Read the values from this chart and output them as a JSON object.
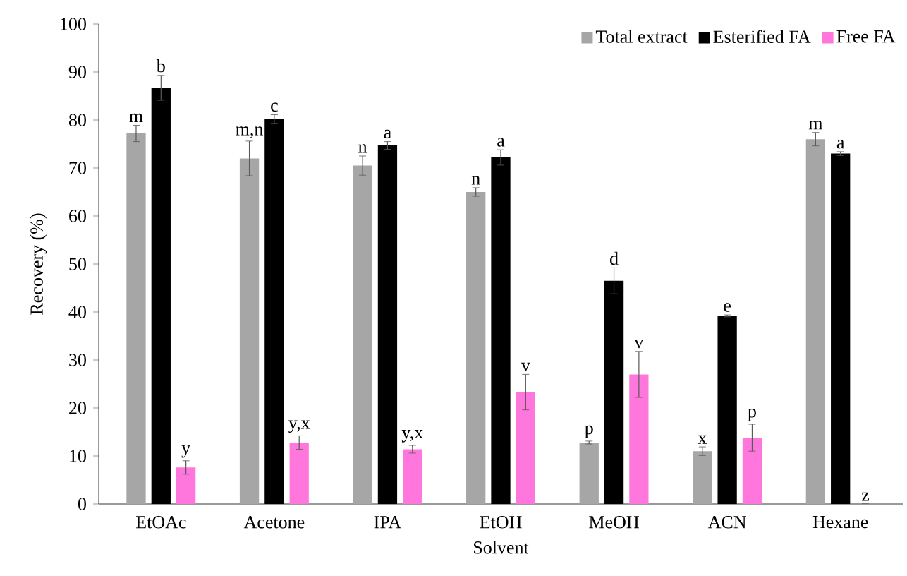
{
  "chart_data": {
    "type": "bar",
    "xlabel": "Solvent",
    "ylabel": "Recovery (%)",
    "categories": [
      "EtOAc",
      "Acetone",
      "IPA",
      "EtOH",
      "MeOH",
      "ACN",
      "Hexane"
    ],
    "series": [
      {
        "name": "Total extract",
        "color": "#a6a6a6",
        "values": [
          77.2,
          72,
          70.5,
          65,
          12.8,
          11,
          76
        ],
        "errors": [
          1.7,
          3.6,
          2,
          0.9,
          0.3,
          0.9,
          1.4
        ]
      },
      {
        "name": "Esterified FA",
        "color": "#000000",
        "values": [
          86.7,
          80.2,
          74.7,
          72.2,
          46.5,
          39.2,
          73
        ],
        "errors": [
          2.6,
          0.9,
          0.8,
          1.6,
          2.7,
          0.2,
          0.4
        ]
      },
      {
        "name": "Free FA",
        "color": "#ff77dd",
        "values": [
          7.6,
          12.8,
          11.4,
          23.3,
          27,
          13.8,
          0
        ],
        "errors": [
          1.4,
          1.4,
          0.8,
          3.7,
          4.8,
          2.8,
          null
        ]
      }
    ],
    "ylim": [
      0,
      100
    ],
    "yticks": [
      0,
      10,
      20,
      30,
      40,
      50,
      60,
      70,
      80,
      90,
      100
    ],
    "grid": false,
    "legend": "top right",
    "annotations": [
      "m",
      "b",
      "y",
      "m,n",
      "c",
      "y,x",
      "n",
      "a",
      "y,x",
      "n",
      "a",
      "v",
      "p",
      "d",
      "v",
      "x",
      "e",
      "p",
      "m",
      "a",
      "z"
    ]
  }
}
